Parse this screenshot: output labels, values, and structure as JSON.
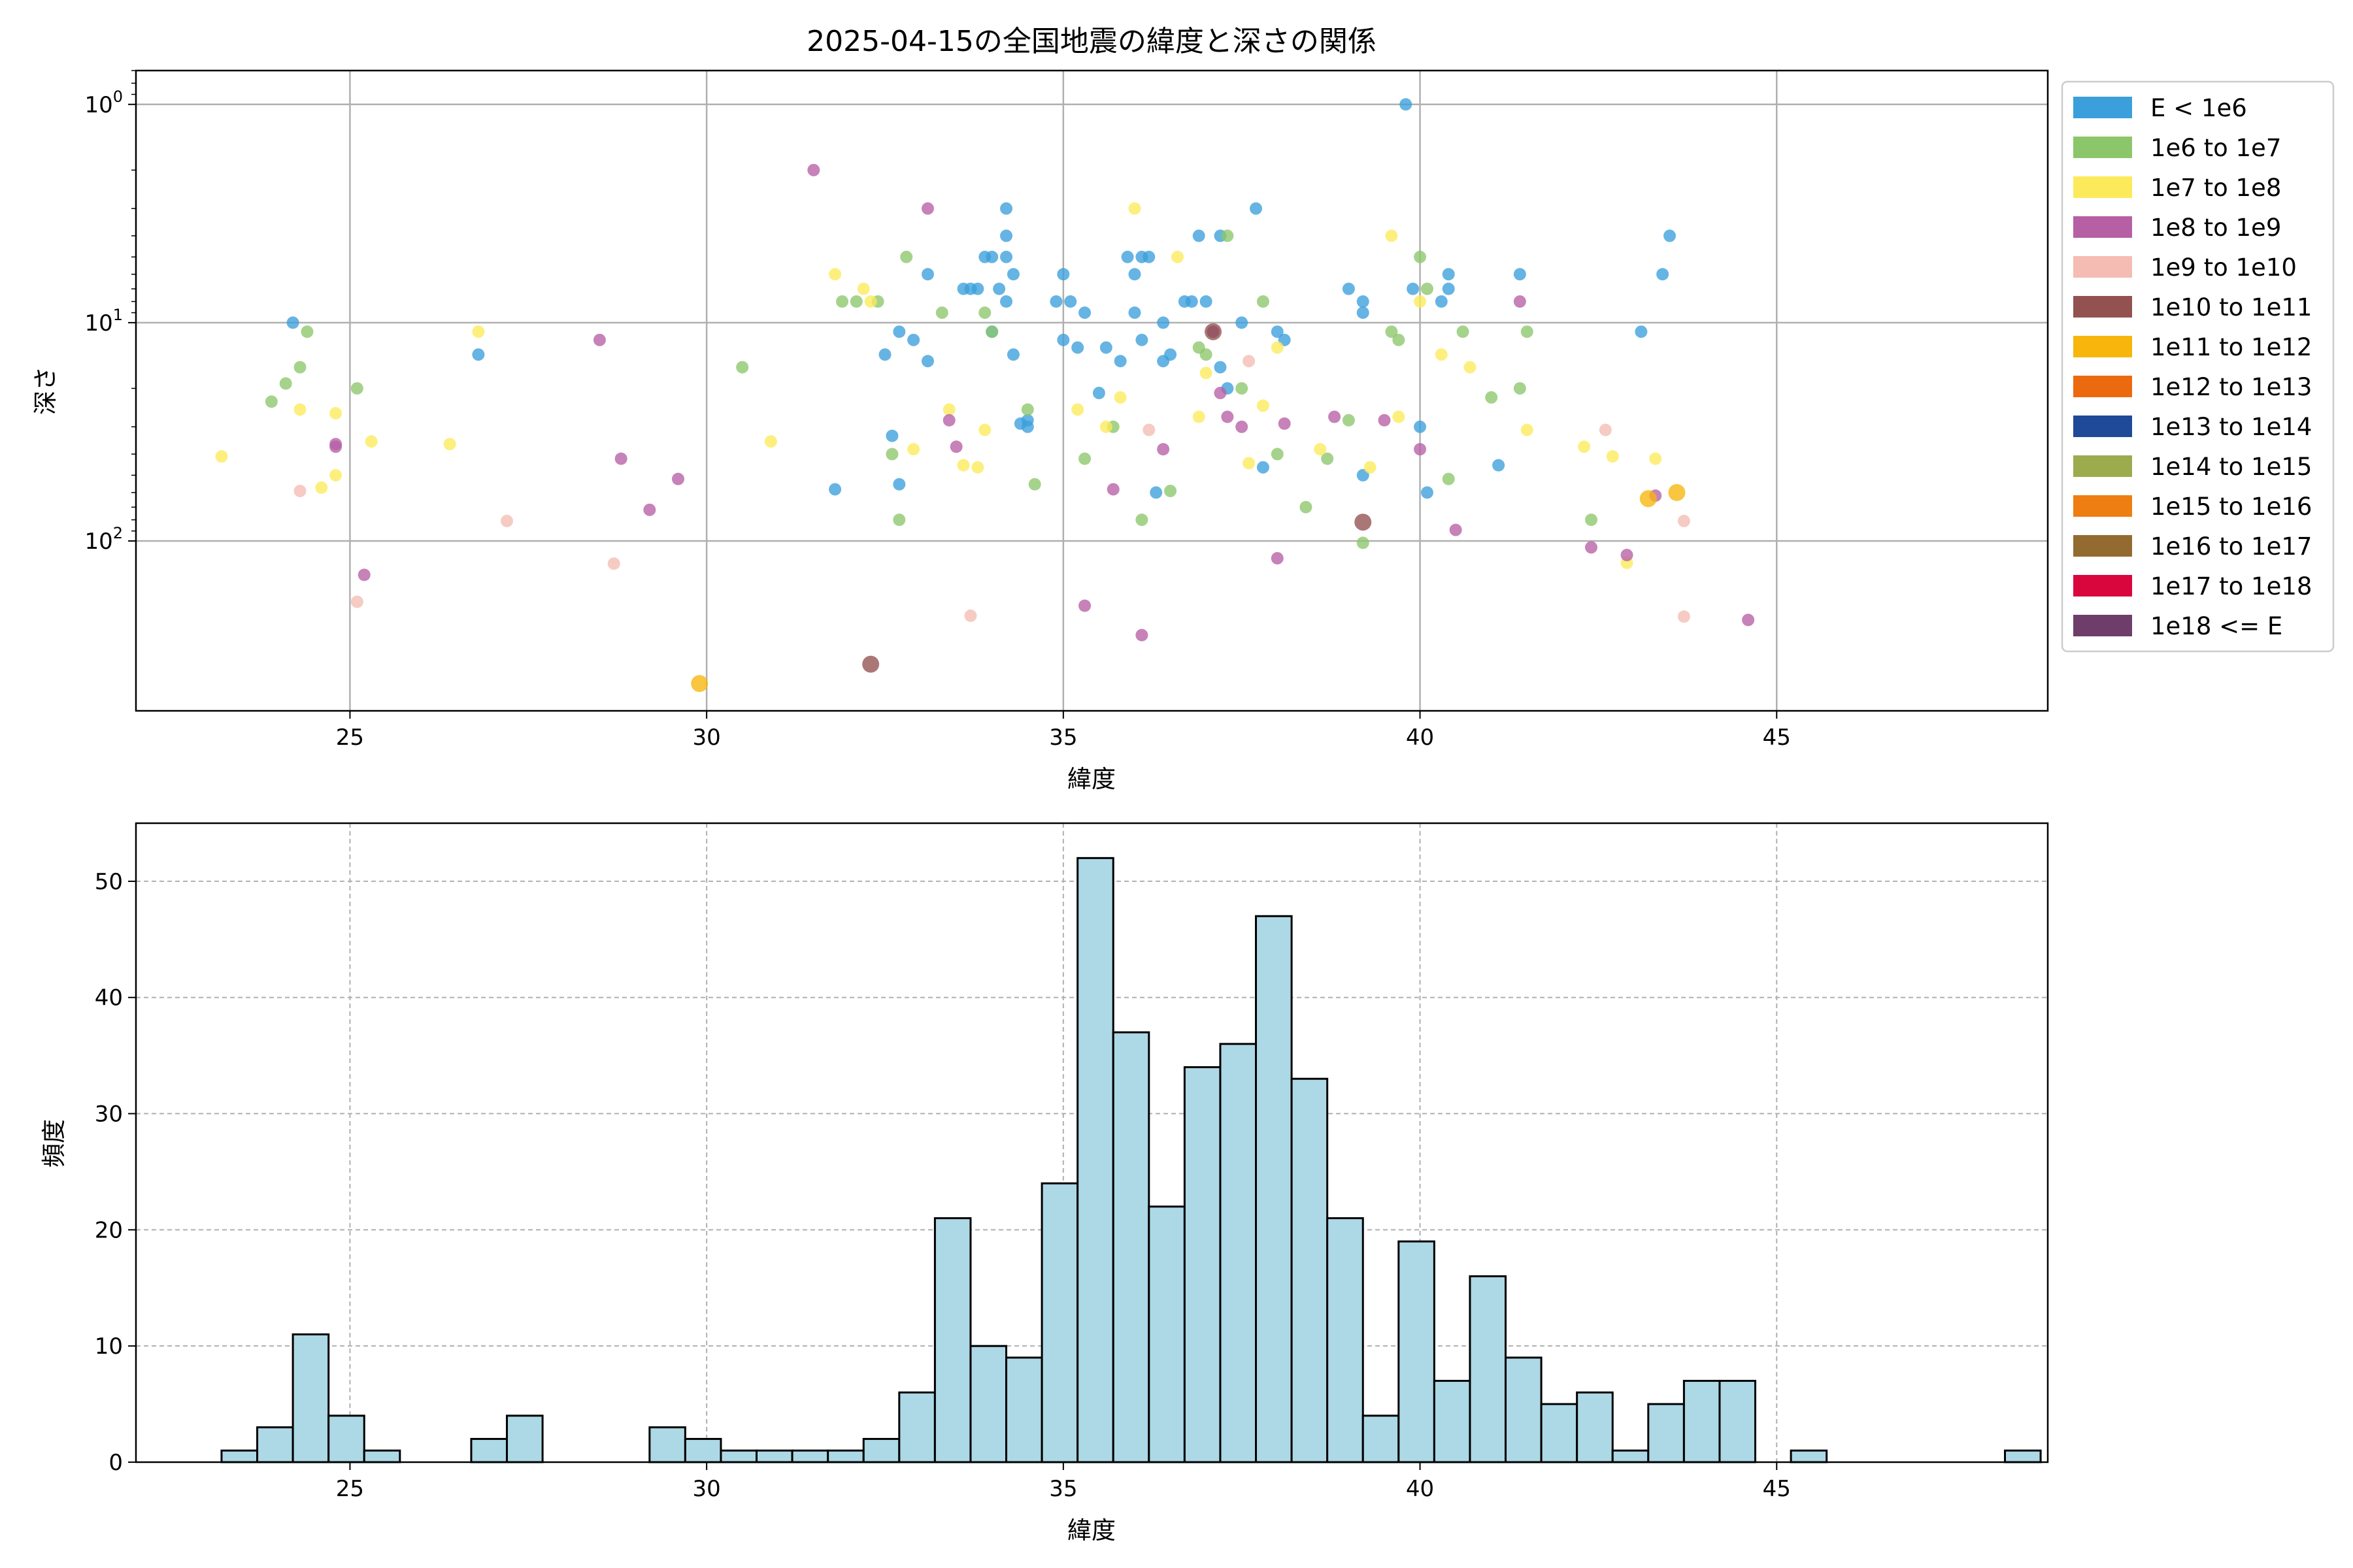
{
  "colors": {
    "E < 1e6": "#3b9fdb",
    "1e6 to 1e7": "#8cc66a",
    "1e7 to 1e8": "#fdea5a",
    "1e8 to 1e9": "#b65fa5",
    "1e9 to 1e10": "#f4bcb3",
    "1e10 to 1e11": "#935150",
    "1e11 to 1e12": "#f7b60b",
    "1e12 to 1e13": "#ec6a0f",
    "1e13 to 1e14": "#1e4a97",
    "1e14 to 1e15": "#9cab4e",
    "1e15 to 1e16": "#ef7e12",
    "1e16 to 1e17": "#936b30",
    "1e17 to 1e18": "#d9063e",
    "1e18 <= E": "#6e3d6a",
    "hist_bar": "#add8e6"
  },
  "chart_data": [
    {
      "type": "scatter",
      "title": "2025-04-15の全国地震の緯度と深さの関係",
      "xlabel": "緯度",
      "ylabel": "深さ",
      "xlim": [
        22.0,
        48.8
      ],
      "ylim": [
        0.7,
        600
      ],
      "y_scale": "log",
      "y_inverted": true,
      "grid": true,
      "xticks": [
        25,
        30,
        35,
        40,
        45
      ],
      "yticks": [
        {
          "value": 1,
          "label": "10^0"
        },
        {
          "value": 10,
          "label": "10^1"
        },
        {
          "value": 100,
          "label": "10^2"
        }
      ],
      "legend_position": "outside-right",
      "legend": [
        "E < 1e6",
        "1e6 to 1e7",
        "1e7 to 1e8",
        "1e8 to 1e9",
        "1e9 to 1e10",
        "1e10 to 1e11",
        "1e11 to 1e12",
        "1e12 to 1e13",
        "1e13 to 1e14",
        "1e14 to 1e15",
        "1e15 to 1e16",
        "1e16 to 1e17",
        "1e17 to 1e18",
        "1e18 <= E"
      ],
      "series": [
        {
          "name": "E < 1e6",
          "points": [
            [
              24.2,
              10
            ],
            [
              26.8,
              14
            ],
            [
              31.8,
              58
            ],
            [
              32.5,
              14
            ],
            [
              32.6,
              33
            ],
            [
              32.7,
              11
            ],
            [
              32.7,
              55
            ],
            [
              32.9,
              12
            ],
            [
              33.1,
              6
            ],
            [
              33.1,
              15
            ],
            [
              33.6,
              7
            ],
            [
              33.7,
              7
            ],
            [
              33.8,
              7
            ],
            [
              33.9,
              5
            ],
            [
              34.0,
              11
            ],
            [
              34.0,
              5
            ],
            [
              34.1,
              7
            ],
            [
              34.2,
              3
            ],
            [
              34.2,
              4
            ],
            [
              34.2,
              5
            ],
            [
              34.2,
              8
            ],
            [
              34.3,
              6
            ],
            [
              34.3,
              14
            ],
            [
              34.4,
              29
            ],
            [
              34.5,
              30
            ],
            [
              34.5,
              28
            ],
            [
              34.9,
              8
            ],
            [
              35.0,
              6
            ],
            [
              35.0,
              12
            ],
            [
              35.1,
              8
            ],
            [
              35.2,
              13
            ],
            [
              35.3,
              9
            ],
            [
              35.5,
              21
            ],
            [
              35.6,
              13
            ],
            [
              35.8,
              15
            ],
            [
              35.9,
              5
            ],
            [
              36.0,
              6
            ],
            [
              36.0,
              9
            ],
            [
              36.1,
              5
            ],
            [
              36.1,
              12
            ],
            [
              36.2,
              5
            ],
            [
              36.3,
              60
            ],
            [
              36.4,
              10
            ],
            [
              36.4,
              15
            ],
            [
              36.5,
              14
            ],
            [
              36.7,
              8
            ],
            [
              36.8,
              8
            ],
            [
              36.9,
              4
            ],
            [
              37.0,
              8
            ],
            [
              37.1,
              11
            ],
            [
              37.2,
              4
            ],
            [
              37.2,
              16
            ],
            [
              37.3,
              20
            ],
            [
              37.5,
              10
            ],
            [
              37.7,
              3
            ],
            [
              37.8,
              46
            ],
            [
              38.0,
              11
            ],
            [
              38.1,
              12
            ],
            [
              39.0,
              7
            ],
            [
              39.2,
              8
            ],
            [
              39.2,
              9
            ],
            [
              39.2,
              50
            ],
            [
              39.8,
              1.0
            ],
            [
              39.9,
              7
            ],
            [
              40.0,
              30
            ],
            [
              40.1,
              60
            ],
            [
              40.3,
              8
            ],
            [
              40.4,
              7
            ],
            [
              40.4,
              6
            ],
            [
              41.1,
              45
            ],
            [
              41.4,
              6
            ],
            [
              43.1,
              11
            ],
            [
              43.4,
              6
            ],
            [
              43.5,
              4
            ]
          ]
        },
        {
          "name": "1e6 to 1e7",
          "points": [
            [
              23.9,
              23
            ],
            [
              24.1,
              19
            ],
            [
              24.3,
              16
            ],
            [
              24.4,
              11
            ],
            [
              25.1,
              20
            ],
            [
              30.5,
              16
            ],
            [
              31.9,
              8
            ],
            [
              32.1,
              8
            ],
            [
              32.4,
              8
            ],
            [
              32.6,
              40
            ],
            [
              32.7,
              80
            ],
            [
              32.8,
              5
            ],
            [
              33.3,
              9
            ],
            [
              33.9,
              9
            ],
            [
              34.0,
              11
            ],
            [
              34.5,
              25
            ],
            [
              34.6,
              55
            ],
            [
              35.3,
              42
            ],
            [
              35.7,
              30
            ],
            [
              36.1,
              80
            ],
            [
              36.5,
              59
            ],
            [
              36.9,
              13
            ],
            [
              37.0,
              14
            ],
            [
              37.3,
              4
            ],
            [
              37.5,
              20
            ],
            [
              37.8,
              8
            ],
            [
              38.0,
              40
            ],
            [
              38.4,
              70
            ],
            [
              38.7,
              42
            ],
            [
              39.0,
              28
            ],
            [
              39.2,
              102
            ],
            [
              39.6,
              11
            ],
            [
              39.7,
              12
            ],
            [
              40.0,
              5
            ],
            [
              40.1,
              7
            ],
            [
              40.4,
              52
            ],
            [
              40.6,
              11
            ],
            [
              41.0,
              22
            ],
            [
              41.5,
              11
            ],
            [
              41.4,
              20
            ],
            [
              42.4,
              80
            ]
          ]
        },
        {
          "name": "1e7 to 1e8",
          "points": [
            [
              23.2,
              41
            ],
            [
              24.3,
              25
            ],
            [
              24.6,
              57
            ],
            [
              24.8,
              26
            ],
            [
              24.8,
              50
            ],
            [
              25.3,
              35
            ],
            [
              26.4,
              36
            ],
            [
              26.8,
              11
            ],
            [
              30.9,
              35
            ],
            [
              31.8,
              6
            ],
            [
              32.2,
              7
            ],
            [
              32.3,
              8
            ],
            [
              32.9,
              38
            ],
            [
              33.4,
              25
            ],
            [
              33.6,
              45
            ],
            [
              33.8,
              46
            ],
            [
              33.9,
              31
            ],
            [
              35.2,
              25
            ],
            [
              35.6,
              30
            ],
            [
              35.8,
              22
            ],
            [
              36.0,
              3
            ],
            [
              36.6,
              5
            ],
            [
              36.9,
              27
            ],
            [
              37.0,
              17
            ],
            [
              37.6,
              44
            ],
            [
              37.8,
              24
            ],
            [
              38.0,
              13
            ],
            [
              38.6,
              38
            ],
            [
              39.3,
              46
            ],
            [
              39.6,
              4
            ],
            [
              39.7,
              27
            ],
            [
              40.0,
              8
            ],
            [
              40.3,
              14
            ],
            [
              40.7,
              16
            ],
            [
              41.5,
              31
            ],
            [
              42.3,
              37
            ],
            [
              42.7,
              41
            ],
            [
              42.9,
              126
            ],
            [
              43.3,
              42
            ]
          ]
        },
        {
          "name": "1e8 to 1e9",
          "points": [
            [
              24.8,
              36
            ],
            [
              24.8,
              37
            ],
            [
              25.2,
              143
            ],
            [
              28.5,
              12
            ],
            [
              28.8,
              42
            ],
            [
              29.2,
              72
            ],
            [
              29.6,
              52
            ],
            [
              31.5,
              2
            ],
            [
              33.1,
              3
            ],
            [
              33.4,
              28
            ],
            [
              33.5,
              37
            ],
            [
              35.3,
              198
            ],
            [
              35.7,
              58
            ],
            [
              36.1,
              270
            ],
            [
              36.4,
              38
            ],
            [
              37.1,
              11
            ],
            [
              37.2,
              21
            ],
            [
              37.3,
              27
            ],
            [
              37.5,
              30
            ],
            [
              38.1,
              29
            ],
            [
              38.0,
              120
            ],
            [
              38.8,
              27
            ],
            [
              39.5,
              28
            ],
            [
              40.0,
              38
            ],
            [
              40.5,
              89
            ],
            [
              41.4,
              8
            ],
            [
              42.4,
              107
            ],
            [
              42.9,
              116
            ],
            [
              43.3,
              62
            ],
            [
              44.6,
              230
            ]
          ]
        },
        {
          "name": "1e9 to 1e10",
          "points": [
            [
              24.3,
              59
            ],
            [
              25.1,
              190
            ],
            [
              27.2,
              81
            ],
            [
              28.7,
              127
            ],
            [
              33.7,
              220
            ],
            [
              36.2,
              31
            ],
            [
              37.6,
              15
            ],
            [
              42.6,
              31
            ],
            [
              43.7,
              81
            ],
            [
              43.7,
              222
            ]
          ]
        },
        {
          "name": "1e10 to 1e11",
          "points": [
            [
              32.3,
              367
            ],
            [
              37.1,
              11
            ],
            [
              39.2,
              82
            ]
          ]
        },
        {
          "name": "1e11 to 1e12",
          "points": [
            [
              29.9,
              450
            ],
            [
              43.2,
              64
            ],
            [
              43.6,
              60
            ]
          ]
        }
      ]
    },
    {
      "type": "bar",
      "xlabel": "緯度",
      "ylabel": "頻度",
      "xlim": [
        22.0,
        48.8
      ],
      "ylim": [
        0,
        55
      ],
      "grid": true,
      "grid_style": "dashed",
      "xticks": [
        25,
        30,
        35,
        40,
        45
      ],
      "yticks": [
        0,
        10,
        20,
        30,
        40,
        50
      ],
      "bin_start": 23.2,
      "bin_width": 0.5,
      "counts": [
        1,
        3,
        11,
        4,
        1,
        0,
        0,
        2,
        4,
        0,
        0,
        0,
        3,
        2,
        1,
        1,
        1,
        1,
        2,
        6,
        21,
        10,
        9,
        24,
        52,
        37,
        22,
        34,
        36,
        47,
        33,
        21,
        4,
        19,
        7,
        16,
        9,
        5,
        6,
        1,
        5,
        7,
        7,
        0,
        1,
        0,
        0,
        0,
        0,
        0,
        1
      ]
    }
  ]
}
